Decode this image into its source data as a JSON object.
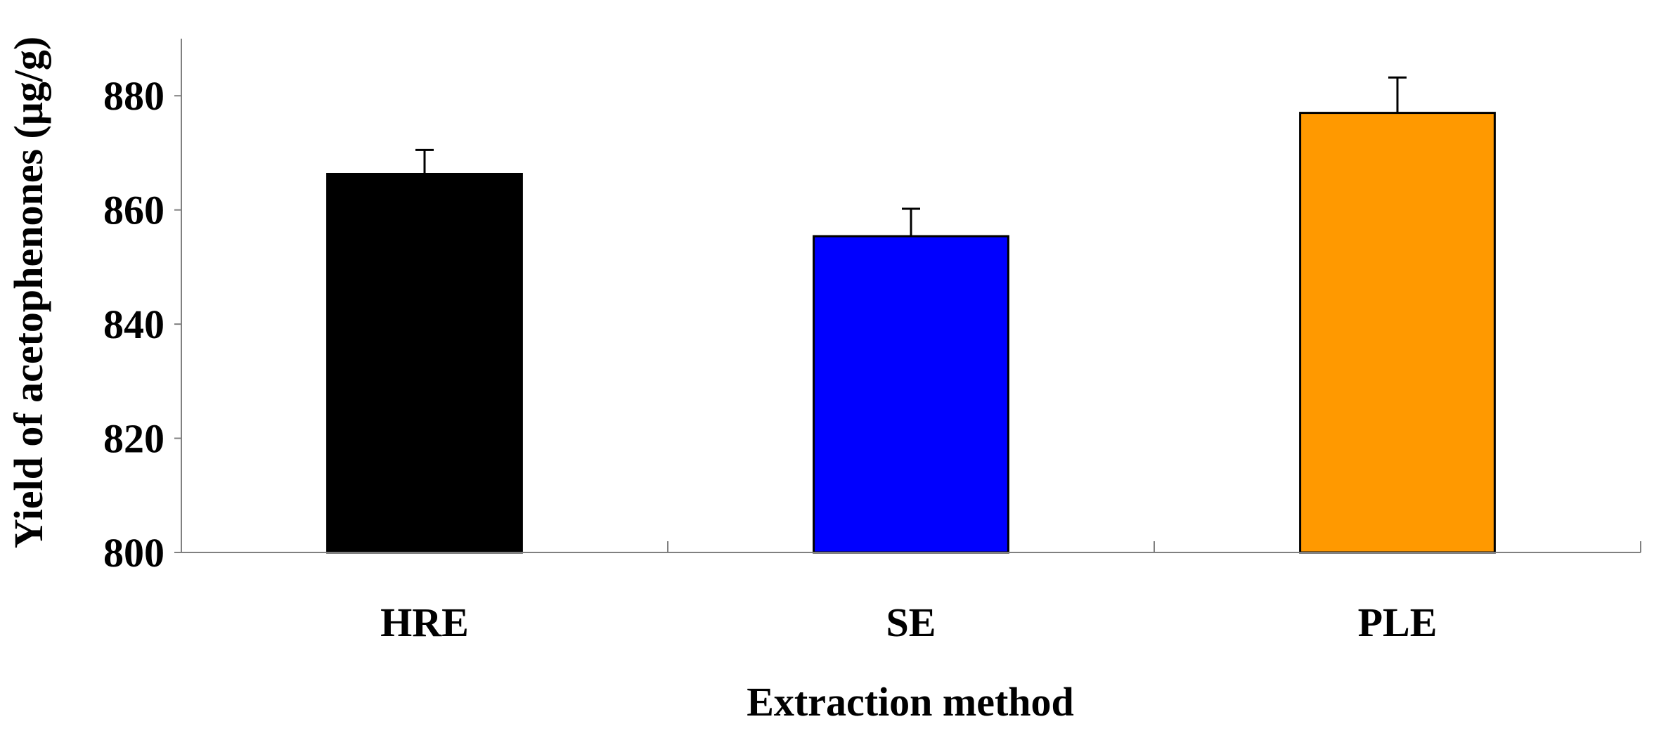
{
  "chart_data": {
    "type": "bar",
    "title": "",
    "xlabel": "Extraction method",
    "ylabel": "Yield of acetophenones (μg/g)",
    "categories": [
      "HRE",
      "SE",
      "PLE"
    ],
    "values": [
      866.3,
      855.4,
      877.0
    ],
    "errors": [
      4.2,
      4.8,
      6.2
    ],
    "colors": [
      "#000000",
      "#0000ff",
      "#ff9900"
    ],
    "ylim": [
      800,
      890
    ],
    "yticks": [
      800,
      820,
      840,
      860,
      880
    ],
    "ytick_labels": [
      "800",
      "820",
      "840",
      "860",
      "880"
    ],
    "grid": false,
    "legend": "none"
  }
}
